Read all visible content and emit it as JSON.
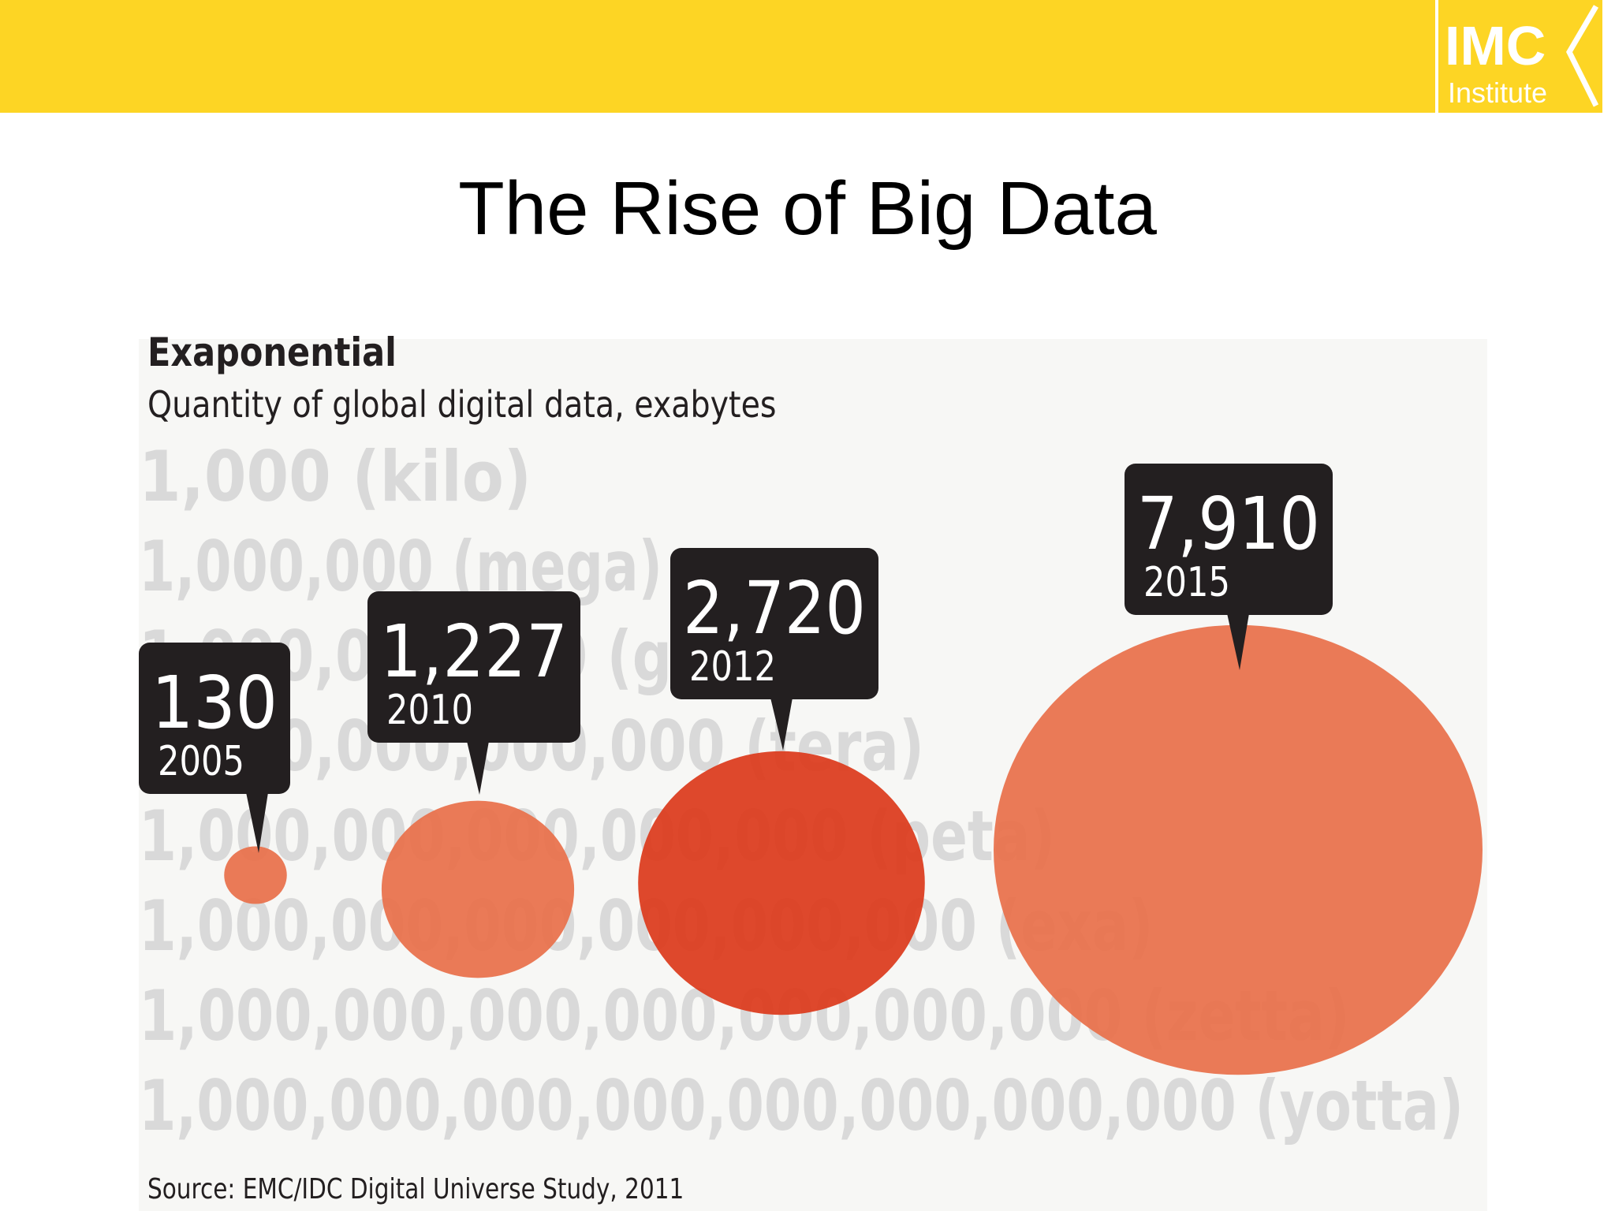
{
  "slide": {
    "title": "The Rise of Big Data",
    "logo": {
      "line1": "IMC",
      "line2": "Institute"
    }
  },
  "colors": {
    "topbar": "#fdd524",
    "bubble": "#e8704a",
    "bubble_highlight": "#db3a1c",
    "callout": "#231f20",
    "scale_text": "#d9d9d9"
  },
  "chart_data": {
    "type": "bubble",
    "title": "Exaponential",
    "subtitle": "Quantity of global digital data, exabytes",
    "source": "Source: EMC/IDC Digital Universe Study, 2011",
    "scale_labels": [
      "1,000 (kilo)",
      "1,000,000 (mega)",
      "1,000,000,000 (giga)",
      "1,000,000,000,000 (tera)",
      "1,000,000,000,000,000 (peta)",
      "1,000,000,000,000,000,000 (exa)",
      "1,000,000,000,000,000,000,000 (zetta)",
      "1,000,000,000,000,000,000,000,000 (yotta)"
    ],
    "points": [
      {
        "year": "2005",
        "value": 130,
        "label": "130"
      },
      {
        "year": "2010",
        "value": 1227,
        "label": "1,227"
      },
      {
        "year": "2012",
        "value": 2720,
        "label": "2,720"
      },
      {
        "year": "2015",
        "value": 7910,
        "label": "7,910"
      }
    ]
  }
}
